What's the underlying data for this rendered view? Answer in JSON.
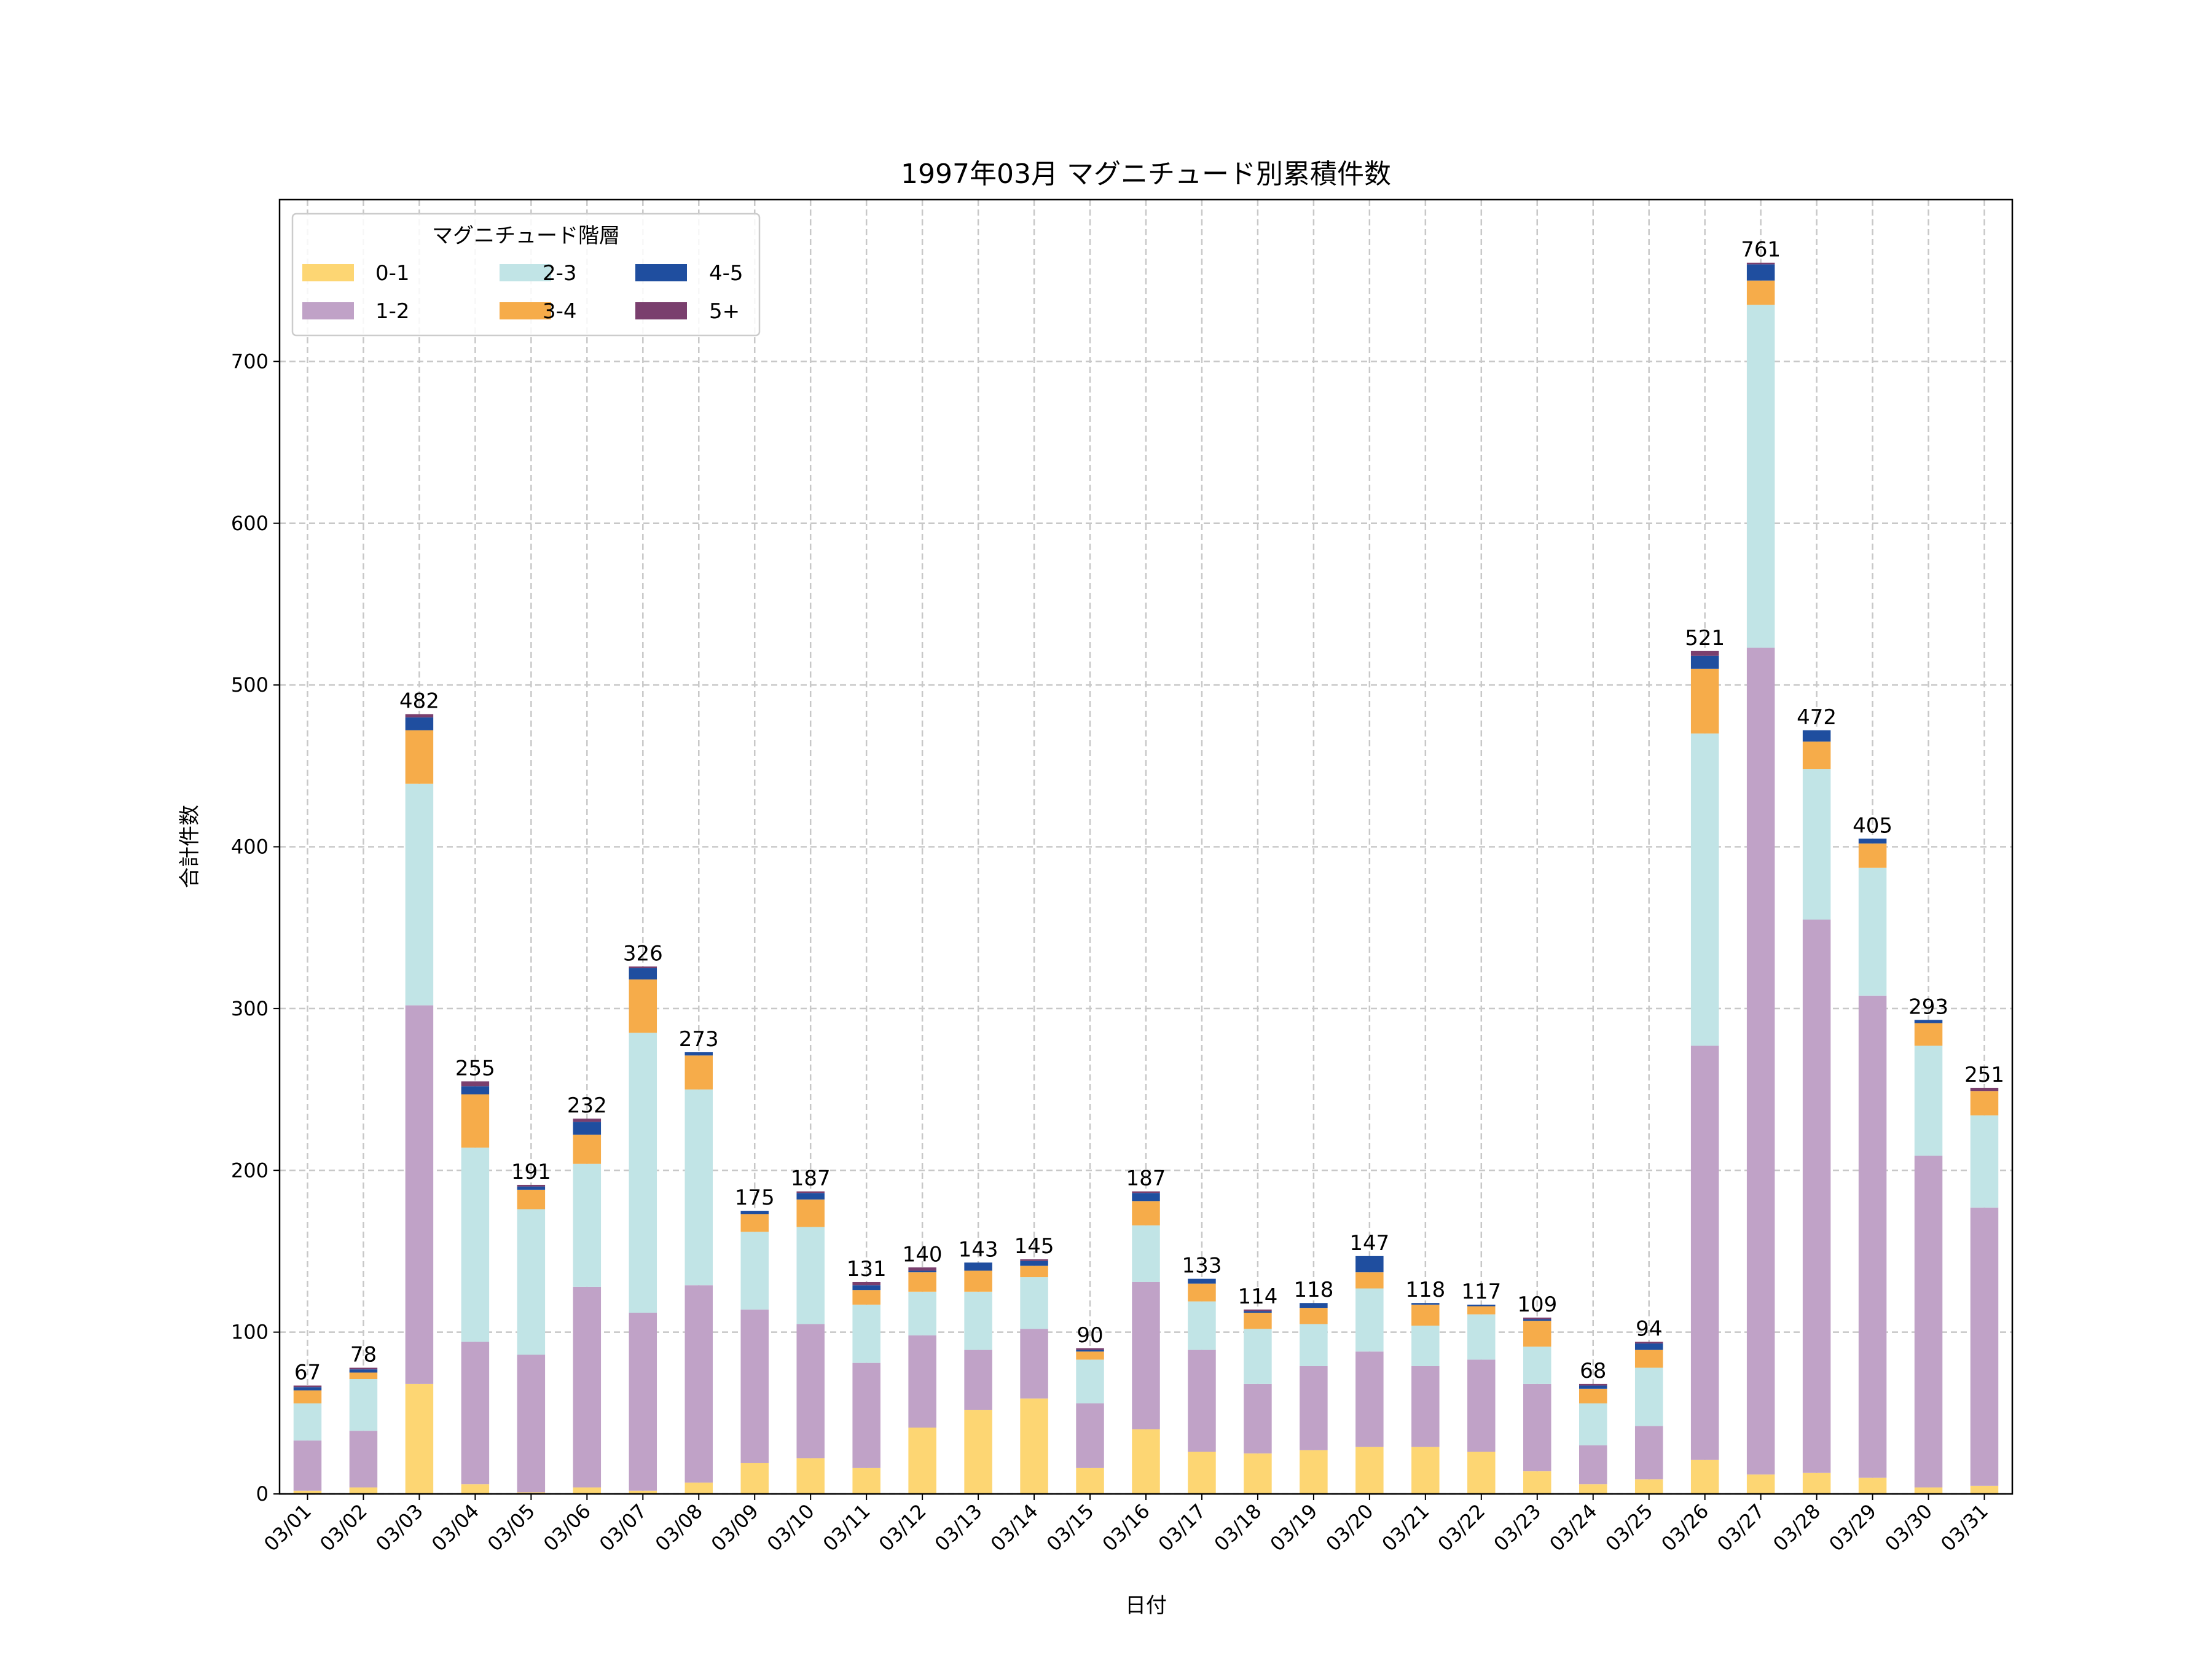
{
  "chart_data": {
    "type": "bar",
    "stacked": true,
    "title": "1997年03月 マグニチュード別累積件数",
    "xlabel": "日付",
    "ylabel": "合計件数",
    "ylim": [
      0,
      800
    ],
    "yticks": [
      0,
      100,
      200,
      300,
      400,
      500,
      600,
      700
    ],
    "grid": true,
    "legend": {
      "title": "マグニチュード階層",
      "placement": "top-left",
      "columns": 3
    },
    "categories": [
      "03/01",
      "03/02",
      "03/03",
      "03/04",
      "03/05",
      "03/06",
      "03/07",
      "03/08",
      "03/09",
      "03/10",
      "03/11",
      "03/12",
      "03/13",
      "03/14",
      "03/15",
      "03/16",
      "03/17",
      "03/18",
      "03/19",
      "03/20",
      "03/21",
      "03/22",
      "03/23",
      "03/24",
      "03/25",
      "03/26",
      "03/27",
      "03/28",
      "03/29",
      "03/30",
      "03/31"
    ],
    "totals": [
      67,
      78,
      482,
      255,
      191,
      232,
      326,
      273,
      175,
      187,
      131,
      140,
      143,
      145,
      90,
      187,
      133,
      114,
      118,
      147,
      118,
      117,
      109,
      68,
      94,
      521,
      761,
      472,
      405,
      293,
      251
    ],
    "series": [
      {
        "name": "0-1",
        "color": "#FDD673",
        "values": [
          2,
          4,
          68,
          6,
          1,
          4,
          2,
          7,
          19,
          22,
          16,
          41,
          52,
          59,
          16,
          40,
          26,
          25,
          27,
          29,
          29,
          26,
          14,
          6,
          9,
          21,
          12,
          13,
          10,
          4,
          5
        ]
      },
      {
        "name": "1-2",
        "color": "#C0A2C7",
        "values": [
          31,
          35,
          234,
          88,
          85,
          124,
          110,
          122,
          95,
          83,
          65,
          57,
          37,
          43,
          40,
          91,
          63,
          43,
          52,
          59,
          50,
          57,
          54,
          24,
          33,
          256,
          511,
          342,
          298,
          205,
          172
        ]
      },
      {
        "name": "2-3",
        "color": "#C1E4E6",
        "values": [
          23,
          32,
          137,
          120,
          90,
          76,
          173,
          121,
          48,
          60,
          36,
          27,
          36,
          32,
          27,
          35,
          30,
          34,
          26,
          39,
          25,
          28,
          23,
          26,
          36,
          193,
          212,
          93,
          79,
          68,
          57
        ]
      },
      {
        "name": "3-4",
        "color": "#F6AC4A",
        "values": [
          8,
          4,
          33,
          33,
          12,
          18,
          33,
          21,
          11,
          17,
          9,
          12,
          13,
          7,
          5,
          15,
          11,
          10,
          10,
          10,
          13,
          5,
          16,
          9,
          11,
          40,
          15,
          17,
          15,
          14,
          15
        ]
      },
      {
        "name": "4-5",
        "color": "#1F4E9F",
        "values": [
          2,
          2,
          8,
          5,
          2,
          8,
          7,
          2,
          2,
          4,
          3,
          1,
          5,
          3,
          1,
          5,
          3,
          1,
          3,
          10,
          1,
          1,
          1,
          2,
          4,
          8,
          10,
          7,
          3,
          2,
          0
        ]
      },
      {
        "name": "5+",
        "color": "#7A3F6E",
        "values": [
          1,
          1,
          2,
          3,
          1,
          2,
          1,
          0,
          0,
          1,
          2,
          2,
          0,
          1,
          1,
          1,
          0,
          1,
          0,
          0,
          0,
          0,
          1,
          1,
          1,
          3,
          1,
          0,
          0,
          0,
          2
        ]
      }
    ]
  }
}
